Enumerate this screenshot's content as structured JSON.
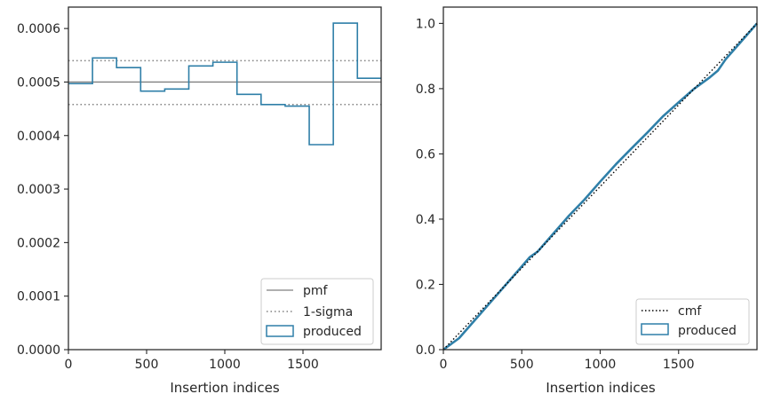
{
  "chart_data": [
    {
      "type": "histogram-step",
      "xlabel": "Insertion indices",
      "ylabel": "",
      "xlim": [
        0,
        2000
      ],
      "ylim": [
        0,
        0.00064
      ],
      "xticks": [
        0,
        500,
        1000,
        1500
      ],
      "yticks": [
        "0.0000",
        "0.0001",
        "0.0002",
        "0.0003",
        "0.0004",
        "0.0005",
        "0.0006"
      ],
      "ytick_values": [
        0,
        0.0001,
        0.0002,
        0.0003,
        0.0004,
        0.0005,
        0.0006
      ],
      "bin_edges": [
        0,
        154,
        308,
        462,
        616,
        770,
        924,
        1078,
        1232,
        1386,
        1540,
        1694,
        1848,
        2000
      ],
      "produced": [
        0.000497,
        0.000545,
        0.000527,
        0.000483,
        0.000487,
        0.00053,
        0.000537,
        0.000477,
        0.000458,
        0.000455,
        0.000383,
        0.00061,
        0.000507
      ],
      "pmf": 0.0005,
      "sigma_upper": 0.00054,
      "sigma_lower": 0.000458,
      "legend": [
        "pmf",
        "1-sigma",
        "produced"
      ],
      "legend_position": "lower-right",
      "colors": {
        "produced": "#2f7fa8",
        "pmf": "#808080",
        "sigma": "#808080"
      }
    },
    {
      "type": "line",
      "xlabel": "Insertion indices",
      "ylabel": "",
      "xlim": [
        0,
        2000
      ],
      "ylim": [
        0,
        1.05
      ],
      "xticks": [
        0,
        500,
        1000,
        1500
      ],
      "yticks": [
        "0.0",
        "0.2",
        "0.4",
        "0.6",
        "0.8",
        "1.0"
      ],
      "ytick_values": [
        0,
        0.2,
        0.4,
        0.6,
        0.8,
        1.0
      ],
      "cmf": {
        "x": [
          0,
          2000
        ],
        "y": [
          0,
          1.0
        ]
      },
      "produced": {
        "x": [
          0,
          100,
          200,
          300,
          400,
          500,
          550,
          600,
          700,
          800,
          900,
          1000,
          1100,
          1200,
          1300,
          1400,
          1500,
          1600,
          1700,
          1750,
          1800,
          1900,
          2000
        ],
        "y": [
          0,
          0.035,
          0.09,
          0.145,
          0.2,
          0.255,
          0.283,
          0.3,
          0.355,
          0.41,
          0.46,
          0.515,
          0.568,
          0.617,
          0.665,
          0.715,
          0.758,
          0.8,
          0.835,
          0.855,
          0.89,
          0.945,
          1.0
        ]
      },
      "legend": [
        "cmf",
        "produced"
      ],
      "legend_position": "lower-right",
      "colors": {
        "produced": "#2f7fa8",
        "cmf": "#000000"
      }
    }
  ]
}
